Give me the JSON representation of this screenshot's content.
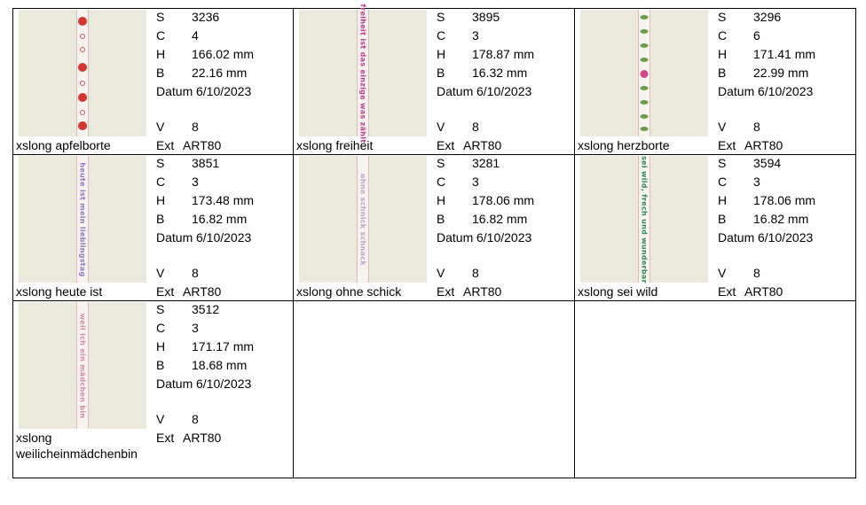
{
  "designs": [
    {
      "name": "xslong apfelborte",
      "S": "3236",
      "C": "4",
      "H": "166.02 mm",
      "B": "22.16 mm",
      "Datum": "6/10/2023",
      "V": "8",
      "Ext": "ART80",
      "strip_text": "",
      "strip_color": "#d2362f"
    },
    {
      "name": "xslong freiheit",
      "S": "3895",
      "C": "3",
      "H": "178.87 mm",
      "B": "16.32 mm",
      "Datum": "6/10/2023",
      "V": "8",
      "Ext": "ART80",
      "strip_text": "freiheit ist das einzige was zählt",
      "strip_color": "#c2388e"
    },
    {
      "name": "xslong herzborte",
      "S": "3296",
      "C": "6",
      "H": "171.41 mm",
      "B": "22.99 mm",
      "Datum": "6/10/2023",
      "V": "8",
      "Ext": "ART80",
      "strip_text": "",
      "strip_color": "#d04888"
    },
    {
      "name": "xslong heute ist",
      "S": "3851",
      "C": "3",
      "H": "173.48 mm",
      "B": "16.82 mm",
      "Datum": "6/10/2023",
      "V": "8",
      "Ext": "ART80",
      "strip_text": "heute ist mein lieblingstag",
      "strip_color": "#8f78c8"
    },
    {
      "name": "xslong ohne schick",
      "S": "3281",
      "C": "3",
      "H": "178.06 mm",
      "B": "16.82 mm",
      "Datum": "6/10/2023",
      "V": "8",
      "Ext": "ART80",
      "strip_text": "ohne schnick schnack",
      "strip_color": "#b9a8c8"
    },
    {
      "name": "xslong sei wild",
      "S": "3594",
      "C": "3",
      "H": "178.06 mm",
      "B": "16.82 mm",
      "Datum": "6/10/2023",
      "V": "8",
      "Ext": "ART80",
      "strip_text": "sei wild, frech und wunderbar",
      "strip_color": "#2f8a52"
    },
    {
      "name": "xslong weilicheinmädchenbin",
      "S": "3512",
      "C": "3",
      "H": "171.17 mm",
      "B": "18.68 mm",
      "Datum": "6/10/2023",
      "V": "8",
      "Ext": "ART80",
      "strip_text": "weil ich ein mädchen bin",
      "strip_color": "#d889a8"
    }
  ],
  "labels": {
    "S": "S",
    "C": "C",
    "H": "H",
    "B": "B",
    "Datum": "Datum",
    "V": "V",
    "Ext": "Ext"
  }
}
